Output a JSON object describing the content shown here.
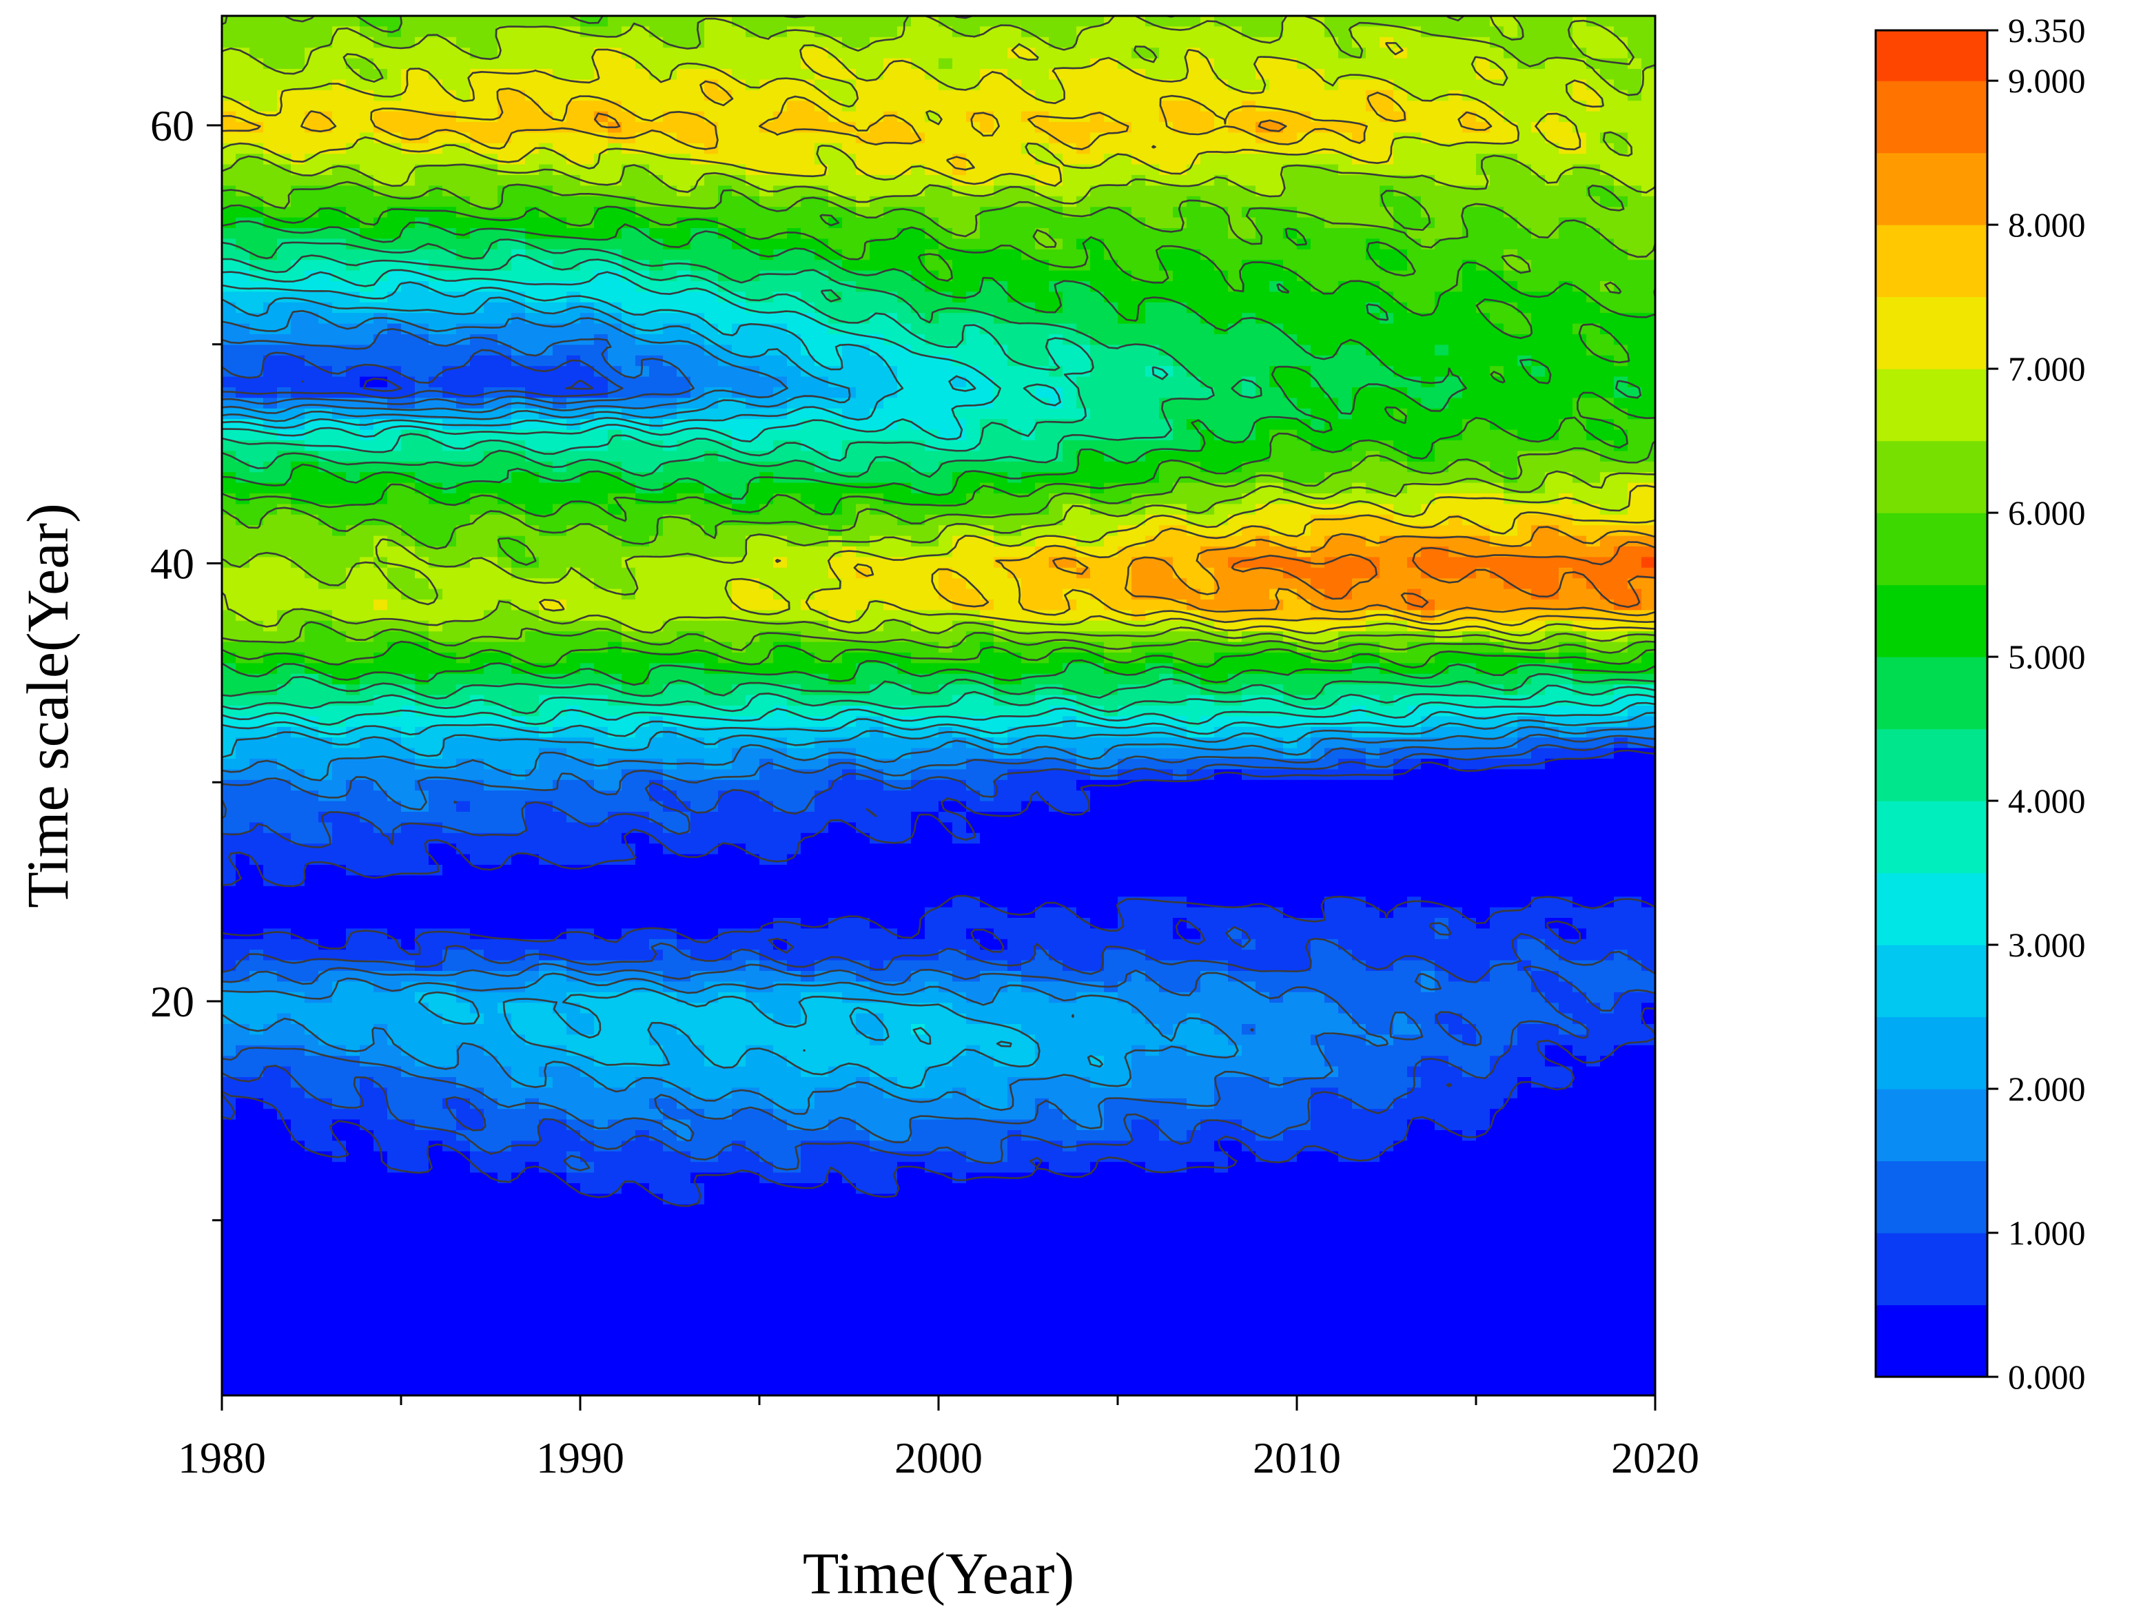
{
  "chart_data": {
    "type": "heatmap",
    "subtype": "filled-contour",
    "xlabel": "Time(Year)",
    "ylabel": "Time scale(Year)",
    "xlim": [
      1980,
      2020
    ],
    "ylim": [
      2,
      65
    ],
    "x_ticks": [
      1980,
      1990,
      2000,
      2010,
      2020
    ],
    "x_tick_labels": [
      "1980",
      "1990",
      "2000",
      "2010",
      "2020"
    ],
    "x_minor_ticks": [
      1985,
      1995,
      2005,
      2015
    ],
    "y_ticks": [
      20,
      40,
      60
    ],
    "y_tick_labels": [
      "20",
      "40",
      "60"
    ],
    "y_minor_ticks": [
      10,
      30,
      50
    ],
    "colorbar": {
      "min": 0,
      "max": 9.35,
      "level_step": 0.5,
      "tick_values": [
        0,
        1,
        2,
        3,
        4,
        5,
        6,
        7,
        8,
        9,
        9.35
      ],
      "tick_labels": [
        "0.000",
        "1.000",
        "2.000",
        "3.000",
        "4.000",
        "5.000",
        "6.000",
        "7.000",
        "8.000",
        "9.000",
        "9.350"
      ],
      "colors": [
        "#0000ff",
        "#0a3cf5",
        "#0a64f0",
        "#0a8cf5",
        "#00aaf5",
        "#00c8f0",
        "#00e6e6",
        "#00eebe",
        "#00e68c",
        "#00dc50",
        "#00d200",
        "#3cd800",
        "#78e000",
        "#b4f000",
        "#f0e600",
        "#ffc800",
        "#ff9b00",
        "#ff7300",
        "#ff4600",
        "#ff1400"
      ]
    },
    "profile_scales": [
      2,
      8,
      12,
      14,
      16,
      17,
      18,
      20,
      21,
      22,
      24,
      26,
      28,
      30,
      31,
      32,
      33,
      34,
      35,
      36,
      38,
      40,
      42,
      44,
      46,
      48,
      50,
      52,
      54,
      56,
      58,
      60,
      62,
      64,
      65
    ],
    "profile_years": [
      1980,
      1990,
      2000,
      2010,
      2020
    ],
    "profiles": [
      {
        "year": 1980,
        "values": [
          0.1,
          0.1,
          0.2,
          0.3,
          0.6,
          0.9,
          1.6,
          2.2,
          1.6,
          0.8,
          0.2,
          0.6,
          1.1,
          1.6,
          2.1,
          2.5,
          3.5,
          4.3,
          5.0,
          5.6,
          6.8,
          6.6,
          6.1,
          5.0,
          3.6,
          0.6,
          1.4,
          2.6,
          4.2,
          5.5,
          6.5,
          7.5,
          6.6,
          6.2,
          6.0
        ]
      },
      {
        "year": 1990,
        "values": [
          0.1,
          0.1,
          0.6,
          1.2,
          1.9,
          2.3,
          2.6,
          2.7,
          1.9,
          0.9,
          0.1,
          0.4,
          0.9,
          1.5,
          2.1,
          2.6,
          3.5,
          4.3,
          5.0,
          5.6,
          6.8,
          6.3,
          5.8,
          4.9,
          3.6,
          0.6,
          1.4,
          2.8,
          4.3,
          5.6,
          6.6,
          7.8,
          7.2,
          6.6,
          6.2
        ]
      },
      {
        "year": 2000,
        "values": [
          0.1,
          0.1,
          0.5,
          1.4,
          2.2,
          2.6,
          2.9,
          2.4,
          1.6,
          0.9,
          0.5,
          0.3,
          0.5,
          0.9,
          1.7,
          2.4,
          3.5,
          4.3,
          5.0,
          5.6,
          7.3,
          7.4,
          6.0,
          4.7,
          3.6,
          3.1,
          3.8,
          4.8,
          5.5,
          6.0,
          7.3,
          7.4,
          7.0,
          6.6,
          6.2
        ]
      },
      {
        "year": 2010,
        "values": [
          0.1,
          0.1,
          0.3,
          0.8,
          1.3,
          1.6,
          1.7,
          1.6,
          1.3,
          0.9,
          0.6,
          0.1,
          0.1,
          0.1,
          1.4,
          2.4,
          3.5,
          4.3,
          5.0,
          5.7,
          8.2,
          8.6,
          7.4,
          6.0,
          5.2,
          4.9,
          5.0,
          5.3,
          5.6,
          6.0,
          6.6,
          7.8,
          7.1,
          6.7,
          6.3
        ]
      },
      {
        "year": 2020,
        "values": [
          0.1,
          0.1,
          0.1,
          0.1,
          0.1,
          0.2,
          0.4,
          0.9,
          1.1,
          0.9,
          0.6,
          0.1,
          0.1,
          0.1,
          0.1,
          1.3,
          2.6,
          3.8,
          4.8,
          5.8,
          8.2,
          8.8,
          7.5,
          6.5,
          5.6,
          5.3,
          5.4,
          5.6,
          5.9,
          6.1,
          6.5,
          6.8,
          6.6,
          6.4,
          6.2
        ]
      }
    ]
  }
}
